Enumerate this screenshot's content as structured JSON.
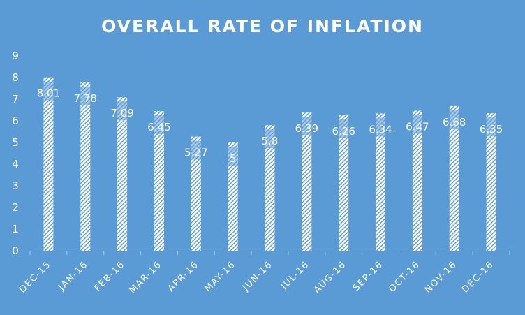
{
  "chart_data": {
    "type": "bar",
    "title": "OVERALL RATE OF INFLATION",
    "categories": [
      "DEC-15",
      "JAN-16",
      "FEB-16",
      "MAR-16",
      "APR-16",
      "MAY-16",
      "JUN-16",
      "JUL-16",
      "AUG-16",
      "SEP-16",
      "OCT-16",
      "NOV-16",
      "DEC-16"
    ],
    "values": [
      8.01,
      7.78,
      7.09,
      6.45,
      5.27,
      5,
      5.8,
      6.39,
      6.26,
      6.34,
      6.47,
      6.68,
      6.35
    ],
    "data_labels": [
      "8.01",
      "7.78",
      "7.09",
      "6.45",
      "5.27",
      "5",
      "5.8",
      "6.39",
      "6.26",
      "6.34",
      "6.47",
      "6.68",
      "6.35"
    ],
    "xlabel": "",
    "ylabel": "",
    "ylim": [
      0,
      9
    ],
    "yticks": [
      "0",
      "1",
      "2",
      "3",
      "4",
      "5",
      "6",
      "7",
      "8",
      "9"
    ],
    "grid": false,
    "legend": "none",
    "colors": {
      "background": "#5b9bd5",
      "bar_pattern": "#ffffff",
      "text": "#ffffff"
    }
  }
}
